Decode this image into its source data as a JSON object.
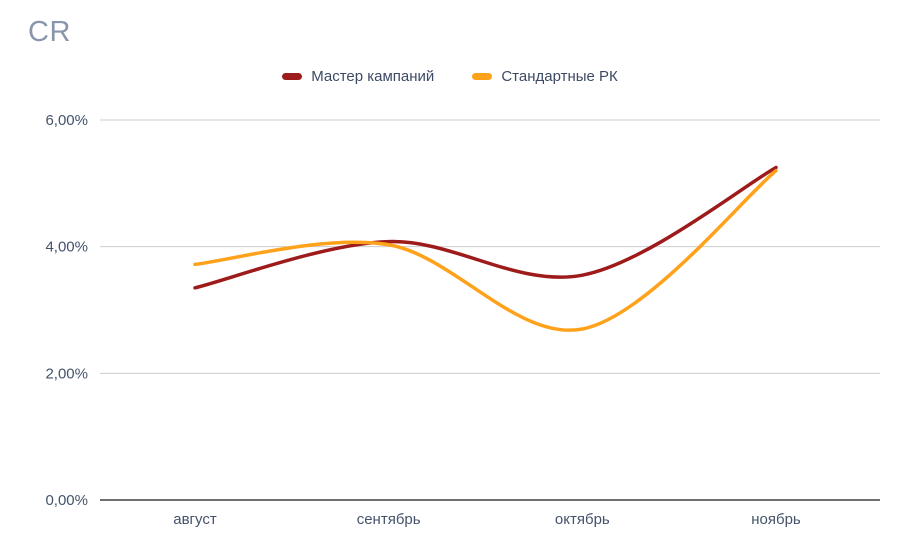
{
  "chart_data": {
    "type": "line",
    "title": "CR",
    "categories": [
      "август",
      "сентябрь",
      "октябрь",
      "ноябрь"
    ],
    "series": [
      {
        "name": "Мастер кампаний",
        "color": "#9e1b1b",
        "values": [
          3.35,
          4.08,
          3.55,
          5.25
        ]
      },
      {
        "name": "Стандартные РК",
        "color": "#ffa21b",
        "values": [
          3.72,
          4.03,
          2.7,
          5.2
        ]
      }
    ],
    "xlabel": "",
    "ylabel": "",
    "ylim": [
      0,
      6
    ],
    "y_ticks": [
      {
        "value": 0,
        "label": "0,00%"
      },
      {
        "value": 2,
        "label": "2,00%"
      },
      {
        "value": 4,
        "label": "4,00%"
      },
      {
        "value": 6,
        "label": "6,00%"
      }
    ],
    "grid": true,
    "legend_position": "top",
    "smooth": true
  }
}
